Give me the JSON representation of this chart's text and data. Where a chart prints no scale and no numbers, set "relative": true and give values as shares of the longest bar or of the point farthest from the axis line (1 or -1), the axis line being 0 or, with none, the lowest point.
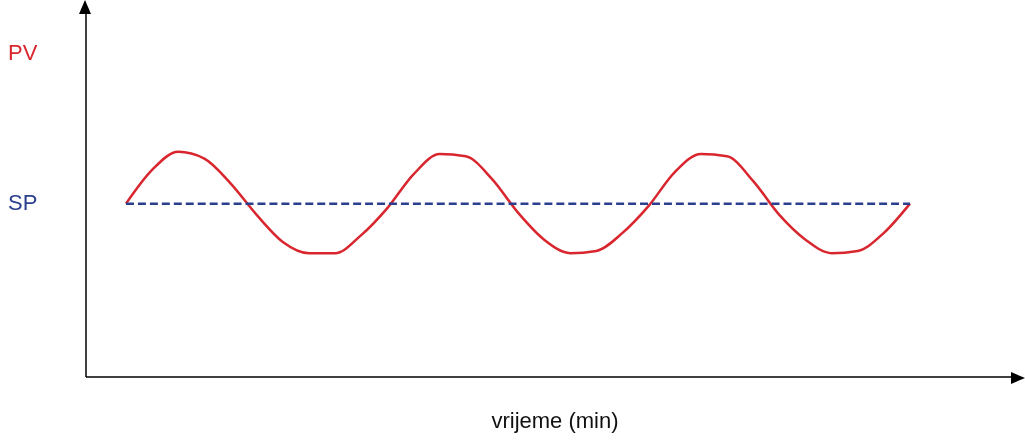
{
  "chart_data": {
    "type": "line",
    "relative": true,
    "xlabel": "vrijeme (min)",
    "marker": "none",
    "grid": false,
    "legend": false,
    "categories": [
      null,
      null,
      null,
      null,
      null,
      null,
      null,
      null,
      null,
      null,
      null,
      null,
      null,
      null,
      null,
      null,
      null,
      null,
      null,
      null,
      null,
      null,
      null,
      null,
      null,
      null,
      null,
      null,
      null,
      null,
      null
    ],
    "series": [
      {
        "name": "PV",
        "color": "#d9262e",
        "line_style": "solid",
        "values": [
          0.77,
          0.92,
          1.0,
          0.97,
          0.86,
          0.72,
          0.6,
          0.55,
          0.55,
          0.63,
          0.75,
          0.9,
          0.99,
          0.98,
          0.88,
          0.73,
          0.61,
          0.55,
          0.56,
          0.64,
          0.76,
          0.91,
          0.99,
          0.98,
          0.87,
          0.72,
          0.61,
          0.55,
          0.56,
          0.64,
          0.77
        ]
      },
      {
        "name": "SP",
        "color": "#2b3f8f",
        "line_style": "dashed",
        "values": [
          0.77,
          0.77,
          0.77,
          0.77,
          0.77,
          0.77,
          0.77,
          0.77,
          0.77,
          0.77,
          0.77,
          0.77,
          0.77,
          0.77,
          0.77,
          0.77,
          0.77,
          0.77,
          0.77,
          0.77,
          0.77,
          0.77,
          0.77,
          0.77,
          0.77,
          0.77,
          0.77,
          0.77,
          0.77,
          0.77,
          0.77
        ]
      }
    ]
  }
}
